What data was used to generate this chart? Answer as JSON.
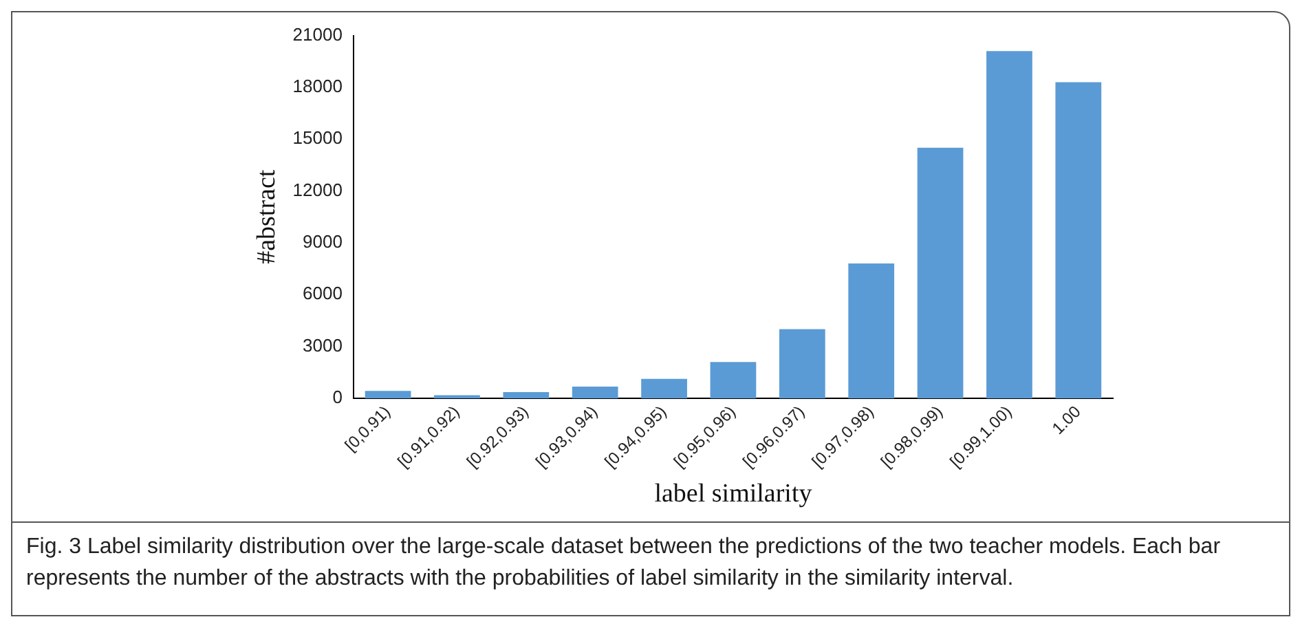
{
  "chart_data": {
    "type": "bar",
    "xlabel": "label similarity",
    "ylabel": "#abstract",
    "categories": [
      "[0,0.91)",
      "[0.91,0.92)",
      "[0.92,0.93)",
      "[0.93,0.94)",
      "[0.94,0.95)",
      "[0.95,0.96)",
      "[0.96,0.97)",
      "[0.97,0.98)",
      "[0.98,0.99)",
      "[0.99,1.00)",
      "1.00"
    ],
    "values": [
      420,
      180,
      350,
      670,
      1120,
      2100,
      4000,
      7800,
      14500,
      20100,
      18300
    ],
    "color": "#5b9bd5",
    "ylim": [
      0,
      21000
    ],
    "yticks": [
      0,
      3000,
      6000,
      9000,
      12000,
      15000,
      18000,
      21000
    ],
    "grid": false,
    "legend": false,
    "annotations": [
      "Fig. 3  Label similarity distribution over the large-scale dataset between the predictions of the two teacher models. Each bar represents the number of the abstracts with the probabilities of label similarity in the similarity interval."
    ]
  }
}
